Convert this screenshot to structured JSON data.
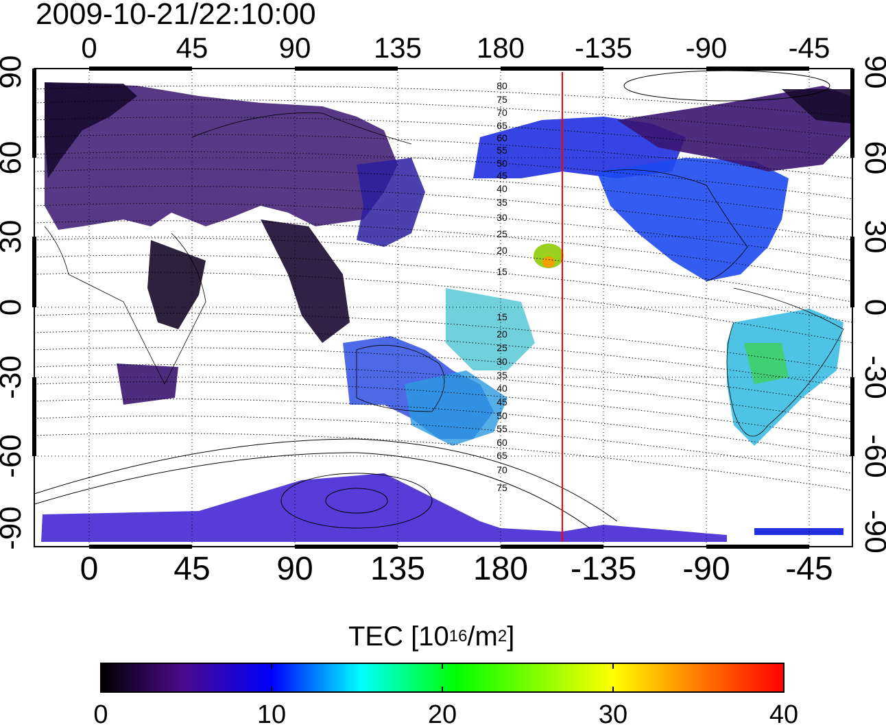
{
  "title": "2009-10-21/22:10:00",
  "top_axis_labels": [
    "0",
    "45",
    "90",
    "135",
    "180",
    "-135",
    "-90",
    "-45"
  ],
  "bottom_axis_labels": [
    "0",
    "45",
    "90",
    "135",
    "180",
    "-135",
    "-90",
    "-45"
  ],
  "left_axis_labels": [
    "90",
    "60",
    "30",
    "0",
    "-30",
    "-60",
    "-90"
  ],
  "right_axis_labels": [
    "90",
    "60",
    "30",
    "0",
    "-30",
    "-60",
    "-90"
  ],
  "contour_labels_north": [
    "80",
    "75",
    "70",
    "65",
    "60",
    "55",
    "50",
    "45",
    "40",
    "35",
    "30",
    "25",
    "20",
    "15"
  ],
  "contour_labels_south": [
    "15",
    "20",
    "25",
    "30",
    "35",
    "40",
    "45",
    "50",
    "55",
    "60",
    "65",
    "70",
    "75"
  ],
  "colorbar": {
    "label_main": "TEC  [10",
    "label_exp1": "16",
    "label_mid": "/m",
    "label_exp2": "2",
    "label_end": "]",
    "ticks": [
      "0",
      "10",
      "20",
      "30",
      "40"
    ],
    "colors": [
      "#000000",
      "#4b0a8c",
      "#0000ff",
      "#00ffff",
      "#00ff00",
      "#ffff00",
      "#ff8000",
      "#ff0000"
    ]
  },
  "colors": {
    "sunline": "#ff0000",
    "frame": "#000000"
  }
}
